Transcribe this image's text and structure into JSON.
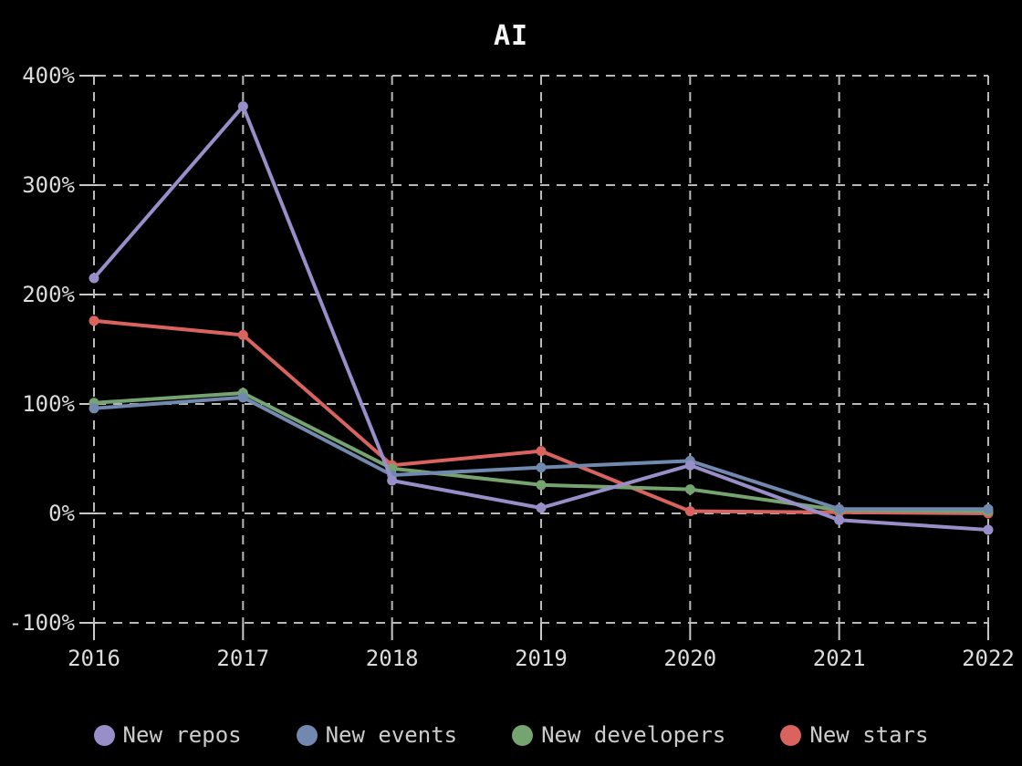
{
  "chart_data": {
    "type": "line",
    "title": "AI",
    "xlabel": "",
    "ylabel": "",
    "x": [
      "2016",
      "2017",
      "2018",
      "2019",
      "2020",
      "2021",
      "2022"
    ],
    "y_ticks": [
      400,
      300,
      200,
      100,
      0,
      -100
    ],
    "y_tick_labels": [
      "400%",
      "300%",
      "200%",
      "100%",
      "0%",
      "-100%"
    ],
    "ylim": [
      -100,
      400
    ],
    "grid": "dashed",
    "legend_position": "bottom",
    "background_color": "#000000",
    "text_color": "#dcdcdc",
    "series": [
      {
        "name": "New repos",
        "color": "#988fc9",
        "values": [
          215,
          372,
          30,
          5,
          44,
          -6,
          -15
        ]
      },
      {
        "name": "New events",
        "color": "#7189ae",
        "values": [
          96,
          106,
          35,
          42,
          48,
          4,
          4
        ]
      },
      {
        "name": "New developers",
        "color": "#76a471",
        "values": [
          101,
          110,
          41,
          26,
          22,
          3,
          2
        ]
      },
      {
        "name": "New stars",
        "color": "#d9635e",
        "values": [
          176,
          163,
          44,
          57,
          2,
          1,
          0
        ]
      }
    ]
  }
}
